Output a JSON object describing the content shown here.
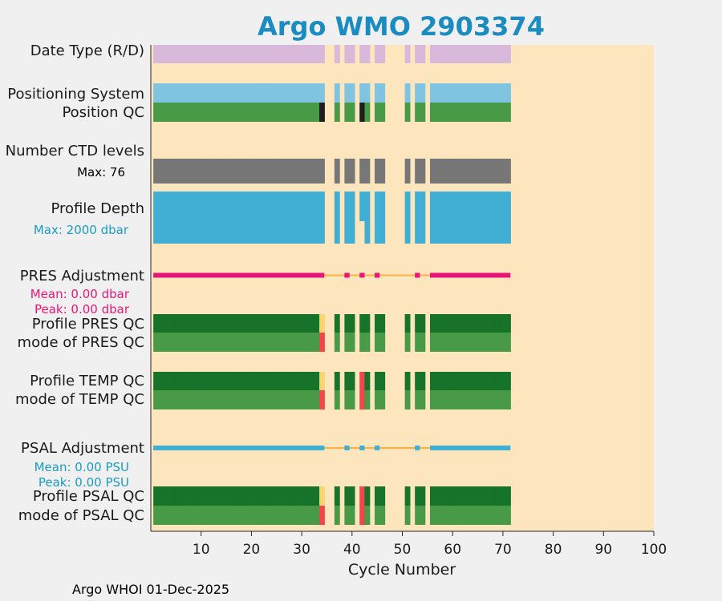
{
  "chart_data": {
    "type": "bar",
    "title": "Argo WMO 2903374",
    "xlabel": "Cycle Number",
    "xlim": [
      0,
      100
    ],
    "xticks": [
      10,
      20,
      30,
      40,
      50,
      60,
      70,
      80,
      90,
      100
    ],
    "footer": "Argo WHOI 01-Dec-2025",
    "colors": {
      "background": "#fde6bd",
      "title": "#1a8cbf",
      "date_type": "#d9b9db",
      "positioning": "#7fc4e0",
      "qc_good": "#499a47",
      "qc_profile_good": "#17722a",
      "qc_bad": "#1e1e1e",
      "qc_flag_red": "#f0474a",
      "qc_flag_yellow": "#f7d670",
      "ctd_levels": "#777777",
      "depth": "#41aed3",
      "pres_adjustment": "#e8167a",
      "psal_adjustment": "#41aed3",
      "adjustment_line": "#fbb03f"
    },
    "row_labels": {
      "date_type": "Date Type (R/D)",
      "positioning": "Positioning System",
      "position_qc": "Position QC",
      "ctd_levels": "Number CTD levels",
      "depth": "Profile Depth",
      "pres_adj": "PRES Adjustment",
      "pres_qc": "Profile PRES QC",
      "pres_mode": "mode of PRES QC",
      "temp_qc": "Profile TEMP QC",
      "temp_mode": "mode of TEMP QC",
      "psal_adj": "PSAL Adjustment",
      "psal_qc": "Profile PSAL QC",
      "psal_mode": "mode of PSAL QC"
    },
    "annotations": {
      "ctd_max": "Max: 76",
      "depth_max": "Max: 2000 dbar",
      "pres_mean": "Mean: 0.00 dbar",
      "pres_peak": "Peak: 0.00 dbar",
      "psal_mean": "Mean: 0.00 PSU",
      "psal_peak": "Peak: 0.00 PSU"
    },
    "cycles": [
      1,
      2,
      3,
      4,
      5,
      6,
      7,
      8,
      9,
      10,
      11,
      12,
      13,
      14,
      15,
      16,
      17,
      18,
      19,
      20,
      21,
      22,
      23,
      24,
      25,
      26,
      27,
      28,
      29,
      30,
      31,
      32,
      33,
      34,
      37,
      39,
      40,
      42,
      43,
      45,
      46,
      51,
      53,
      54,
      56,
      57,
      58,
      59,
      60,
      61,
      62,
      63,
      64,
      65,
      66,
      67,
      68,
      69,
      70,
      71
    ],
    "series": {
      "position_qc_bad": [
        34,
        42
      ],
      "pres_qc_yellow": [
        34
      ],
      "mode_red": [
        34
      ],
      "temp_red": [
        42
      ],
      "depth_short": [
        42
      ],
      "adjustment_segments": [
        [
          1,
          34
        ],
        [
          56,
          71
        ]
      ],
      "adjustment_markers": [
        39,
        42,
        45,
        53
      ]
    }
  }
}
